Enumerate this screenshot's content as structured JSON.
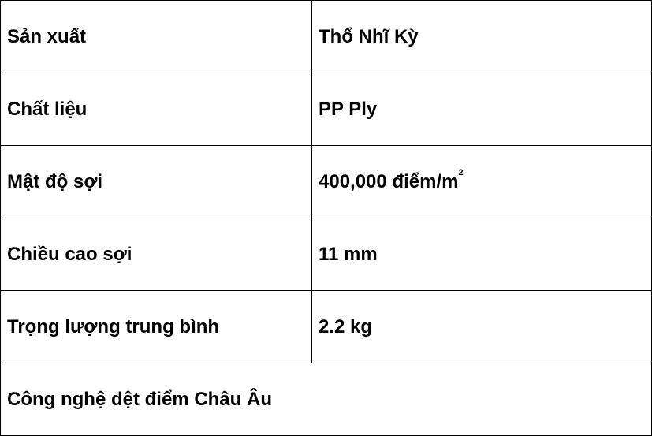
{
  "rows": [
    {
      "label": "Sản xuất",
      "value": "Thổ Nhĩ Kỳ"
    },
    {
      "label": "Chất liệu",
      "value": "PP Ply"
    },
    {
      "label": "Mật độ sợi",
      "value": "400,000 điểm/m",
      "value_sup": "2"
    },
    {
      "label": "Chiều cao sợi",
      "value": "11 mm"
    },
    {
      "label": "Trọng lượng trung bình",
      "value": "2.2 kg"
    }
  ],
  "footer": "Công nghệ dệt điểm Châu Âu"
}
